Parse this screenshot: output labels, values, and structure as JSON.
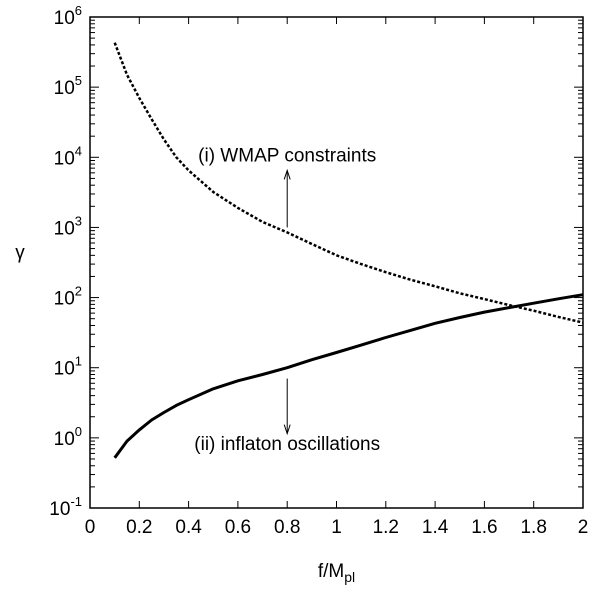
{
  "chart_data": {
    "type": "line",
    "xlabel": "f/M",
    "xlabel_sub": "pl",
    "ylabel": "γ",
    "xlim": [
      0,
      2
    ],
    "ylim": [
      0.1,
      1000000
    ],
    "yscale": "log",
    "grid": false,
    "x_ticks": [
      {
        "value": 0,
        "label": "0"
      },
      {
        "value": 0.2,
        "label": "0.2"
      },
      {
        "value": 0.4,
        "label": "0.4"
      },
      {
        "value": 0.6,
        "label": "0.6"
      },
      {
        "value": 0.8,
        "label": "0.8"
      },
      {
        "value": 1,
        "label": "1"
      },
      {
        "value": 1.2,
        "label": "1.2"
      },
      {
        "value": 1.4,
        "label": "1.4"
      },
      {
        "value": 1.6,
        "label": "1.6"
      },
      {
        "value": 1.8,
        "label": "1.8"
      },
      {
        "value": 2,
        "label": "2"
      }
    ],
    "y_ticks": [
      {
        "value": 0.1,
        "base": "10",
        "exp": "-1"
      },
      {
        "value": 1,
        "base": "10",
        "exp": "0"
      },
      {
        "value": 10,
        "base": "10",
        "exp": "1"
      },
      {
        "value": 100,
        "base": "10",
        "exp": "2"
      },
      {
        "value": 1000,
        "base": "10",
        "exp": "3"
      },
      {
        "value": 10000,
        "base": "10",
        "exp": "4"
      },
      {
        "value": 100000,
        "base": "10",
        "exp": "5"
      },
      {
        "value": 1000000,
        "base": "10",
        "exp": "6"
      }
    ],
    "series": [
      {
        "key": "wmap",
        "style": "dotted",
        "color": "#000000",
        "x": [
          0.1,
          0.15,
          0.2,
          0.25,
          0.3,
          0.35,
          0.4,
          0.5,
          0.6,
          0.7,
          0.8,
          0.9,
          1.0,
          1.1,
          1.2,
          1.3,
          1.4,
          1.5,
          1.6,
          1.7,
          1.8,
          1.9,
          2.0
        ],
        "y": [
          430000,
          150000,
          70000,
          35000,
          18000,
          10000,
          6500,
          3200,
          1900,
          1200,
          850,
          580,
          400,
          300,
          230,
          180,
          145,
          115,
          95,
          78,
          65,
          53,
          44
        ]
      },
      {
        "key": "oscillations",
        "style": "solid",
        "color": "#000000",
        "x": [
          0.1,
          0.15,
          0.2,
          0.25,
          0.3,
          0.35,
          0.4,
          0.5,
          0.6,
          0.7,
          0.8,
          0.9,
          1.0,
          1.1,
          1.2,
          1.3,
          1.4,
          1.5,
          1.6,
          1.7,
          1.8,
          1.9,
          2.0
        ],
        "y": [
          0.52,
          0.9,
          1.3,
          1.8,
          2.3,
          2.9,
          3.5,
          5.0,
          6.5,
          8.0,
          10,
          13,
          16.5,
          21,
          27,
          34,
          43,
          52,
          62,
          72,
          83,
          96,
          110
        ]
      }
    ],
    "annotations": [
      {
        "text": "(i) WMAP constraints",
        "x": 0.8,
        "y": 11000,
        "arrow_from": 1000,
        "arrow_to": 6500
      },
      {
        "text": "(ii) inflaton oscillations",
        "x": 0.8,
        "y": 0.85,
        "arrow_from": 7,
        "arrow_to": 1.15
      }
    ]
  }
}
